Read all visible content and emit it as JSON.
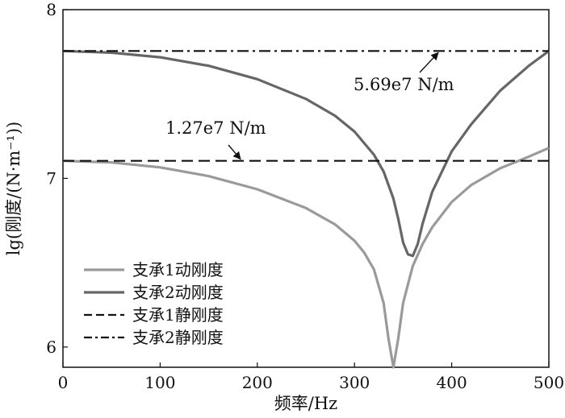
{
  "chart_data": {
    "type": "line",
    "title": "",
    "xlabel": "频率/Hz",
    "ylabel": "lg(刚度/(N·m⁻¹))",
    "xlim": [
      0,
      500
    ],
    "ylim": [
      5.88,
      8.0
    ],
    "xticks": [
      "0",
      "100",
      "200",
      "300",
      "400",
      "500"
    ],
    "yticks": [
      "6",
      "7",
      "8"
    ],
    "grid": false,
    "legend_position": "bottom-left",
    "series": [
      {
        "name": "支承1动刚度",
        "color": "#9a9a9a",
        "style": "solid",
        "x": [
          0,
          50,
          100,
          150,
          200,
          250,
          280,
          300,
          310,
          320,
          330,
          335,
          340,
          345,
          350,
          360,
          370,
          380,
          400,
          420,
          450,
          480,
          500
        ],
        "y": [
          7.104,
          7.094,
          7.065,
          7.013,
          6.935,
          6.824,
          6.727,
          6.63,
          6.56,
          6.46,
          6.26,
          6.05,
          5.88,
          6.05,
          6.26,
          6.48,
          6.61,
          6.71,
          6.86,
          6.96,
          7.06,
          7.13,
          7.18
        ]
      },
      {
        "name": "支承2动刚度",
        "color": "#666666",
        "style": "solid",
        "x": [
          0,
          50,
          100,
          150,
          200,
          250,
          280,
          300,
          320,
          330,
          340,
          345,
          350,
          355,
          360,
          365,
          370,
          380,
          400,
          420,
          450,
          480,
          500
        ],
        "y": [
          7.755,
          7.745,
          7.718,
          7.667,
          7.588,
          7.471,
          7.371,
          7.277,
          7.14,
          7.04,
          6.88,
          6.76,
          6.62,
          6.55,
          6.54,
          6.61,
          6.73,
          6.92,
          7.16,
          7.32,
          7.52,
          7.67,
          7.755
        ]
      },
      {
        "name": "支承1静刚度",
        "color": "#111111",
        "style": "dashed",
        "x": [
          0,
          500
        ],
        "y": [
          7.104,
          7.104
        ]
      },
      {
        "name": "支承2静刚度",
        "color": "#111111",
        "style": "dashdot",
        "x": [
          0,
          500
        ],
        "y": [
          7.755,
          7.755
        ]
      }
    ],
    "annotations": [
      {
        "text": "1.27e7 N/m",
        "x": 180,
        "y": 7.104
      },
      {
        "text": "5.69e7 N/m",
        "x": 385,
        "y": 7.755
      }
    ]
  }
}
